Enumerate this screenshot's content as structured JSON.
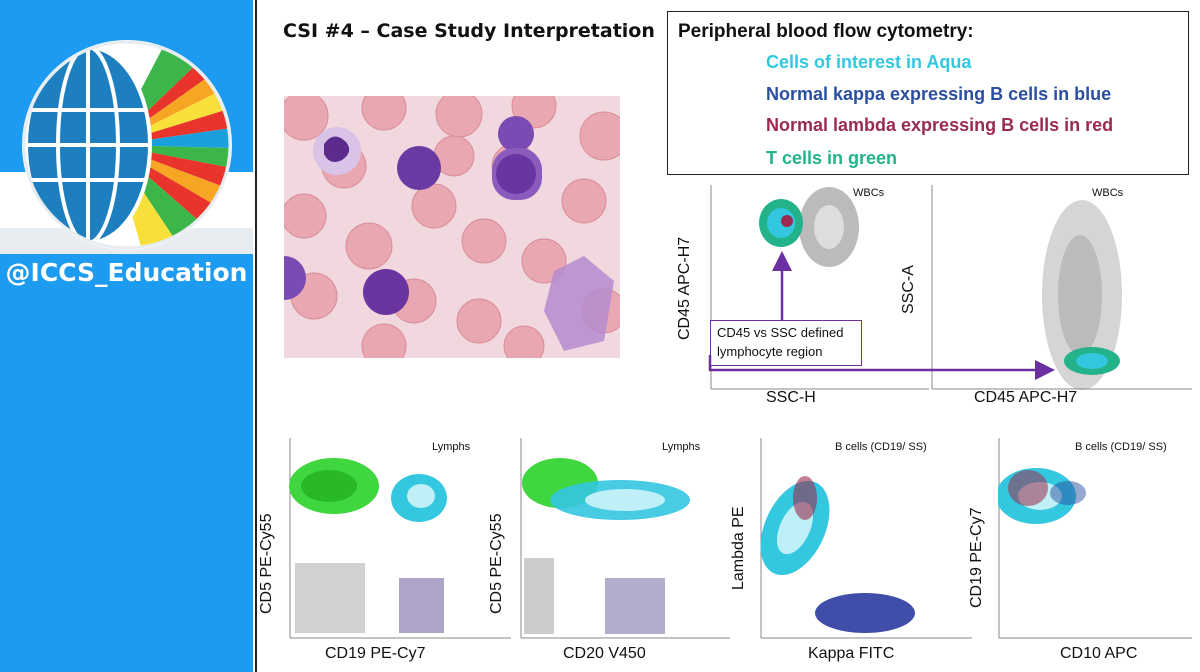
{
  "profile": {
    "handle": "@ICCS_Education",
    "logo_icon": "iccs-globe-logo-icon"
  },
  "slide": {
    "title": "CSI #4 – Case Study Interpretation",
    "image_icon": "blood-smear-micrograph-icon"
  },
  "legend": {
    "title": "Peripheral blood flow cytometry:",
    "items": [
      {
        "label": "Cells of interest in Aqua",
        "color": "#33c7e0"
      },
      {
        "label": "Normal kappa expressing B cells in blue",
        "color": "#2a4fa0"
      },
      {
        "label": "Normal lambda expressing B cells in red",
        "color": "#9a2b4f"
      },
      {
        "label": "T cells in green",
        "color": "#22b38a"
      }
    ]
  },
  "callout": {
    "text": "CD45 vs SSC defined lymphocyte region",
    "arrow_color": "#6b2fa0"
  },
  "plots": [
    {
      "gate": "WBCs",
      "xlabel": "SSC-H",
      "ylabel": "CD45  APC-H7"
    },
    {
      "gate": "WBCs",
      "xlabel": "CD45  APC-H7",
      "ylabel": "SSC-A"
    },
    {
      "gate": "Lymphs",
      "xlabel": "CD19  PE-Cy7",
      "ylabel": "CD5  PE-Cy55"
    },
    {
      "gate": "Lymphs",
      "xlabel": "CD20  V450",
      "ylabel": "CD5  PE-Cy55"
    },
    {
      "gate": "B cells (CD19/ SS)",
      "xlabel": "Kappa FITC",
      "ylabel": "Lambda PE"
    },
    {
      "gate": "B cells (CD19/ SS)",
      "xlabel": "CD10  APC",
      "ylabel": "CD19  PE-Cy7"
    }
  ]
}
